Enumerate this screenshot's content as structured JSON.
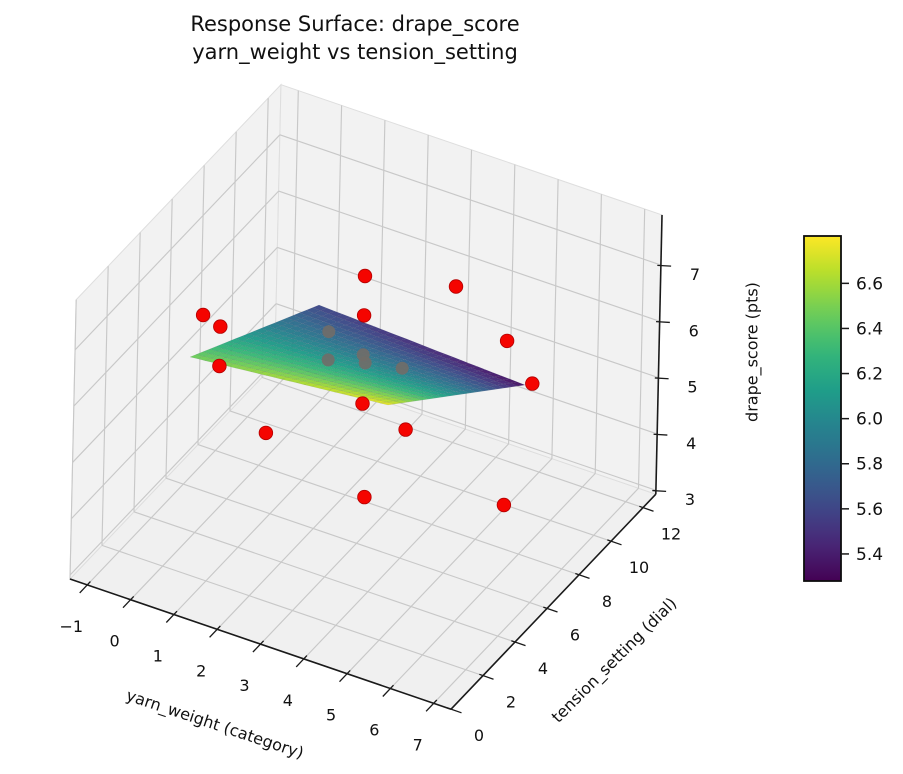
{
  "chart_data": {
    "type": "surface3d_with_scatter",
    "title_line1": "Response Surface: drape_score",
    "title_line2": "yarn_weight vs tension_setting",
    "axes": {
      "x": {
        "label": "yarn_weight (category)",
        "ticks": [
          -1,
          0,
          1,
          2,
          3,
          4,
          5,
          6,
          7
        ],
        "tick_labels": [
          "−1",
          "0",
          "1",
          "2",
          "3",
          "4",
          "5",
          "6",
          "7"
        ],
        "range": [
          -1.4,
          7.4
        ]
      },
      "y": {
        "label": "tension_setting (dial)",
        "ticks": [
          0,
          2,
          4,
          6,
          8,
          10,
          12
        ],
        "tick_labels": [
          "0",
          "2",
          "4",
          "6",
          "8",
          "10",
          "12"
        ],
        "range": [
          0,
          12.8
        ]
      },
      "z": {
        "label": "drape_score (pts)",
        "ticks": [
          3,
          4,
          5,
          6,
          7
        ],
        "tick_labels": [
          "3",
          "4",
          "5",
          "6",
          "7"
        ],
        "range": [
          2.93,
          7.89
        ]
      }
    },
    "surface": {
      "colormap": "viridis",
      "x_range": [
        0,
        6
      ],
      "y_range": [
        2,
        12
      ],
      "corner_z": {
        "x0_y2": 6.48,
        "x6_y2": 6.78,
        "x6_y12": 5.33,
        "x0_y12": 5.6
      },
      "vmin": 5.28,
      "vmax": 6.81
    },
    "scatter": {
      "marker_color": "#f50400",
      "marker_edge_color": "#b30000",
      "occluded_marker_color": "#716d68",
      "points": [
        {
          "yarn_weight": 0.8,
          "tension": 2,
          "drape_score": 7.6
        },
        {
          "yarn_weight": 1.2,
          "tension": 2,
          "drape_score": 7.5
        },
        {
          "yarn_weight": 1.2,
          "tension": 2,
          "drape_score": 6.8
        },
        {
          "yarn_weight": 2.3,
          "tension": 2,
          "drape_score": 5.9
        },
        {
          "yarn_weight": 4.5,
          "tension": 2,
          "drape_score": 7.0
        },
        {
          "yarn_weight": 5.5,
          "tension": 2,
          "drape_score": 6.8
        },
        {
          "yarn_weight": 2.7,
          "tension": 7,
          "drape_score": 7.3
        },
        {
          "yarn_weight": 2.7,
          "tension": 7,
          "drape_score": 6.6
        },
        {
          "yarn_weight": 2.8,
          "tension": 7,
          "drape_score": 3.4
        },
        {
          "yarn_weight": 6.0,
          "tension": 7,
          "drape_score": 4.1
        },
        {
          "yarn_weight": 3.0,
          "tension": 12,
          "drape_score": 5.7
        },
        {
          "yarn_weight": 4.2,
          "tension": 12,
          "drape_score": 5.05
        },
        {
          "yarn_weight": 4.8,
          "tension": 12,
          "drape_score": 4.45
        }
      ],
      "occluded_points": [
        {
          "yarn_weight": 1.9,
          "tension": 7,
          "drape_score": 6.1
        },
        {
          "yarn_weight": 2.7,
          "tension": 7,
          "drape_score": 5.9
        },
        {
          "yarn_weight": 2.75,
          "tension": 7,
          "drape_score": 5.77
        },
        {
          "yarn_weight": 1.9,
          "tension": 7,
          "drape_score": 5.6
        },
        {
          "yarn_weight": 3.6,
          "tension": 7,
          "drape_score": 5.9
        }
      ]
    },
    "colorbar": {
      "vmin": 5.28,
      "vmax": 6.81,
      "ticks": [
        6.6,
        6.4,
        6.2,
        6.0,
        5.8,
        5.6,
        5.4
      ],
      "tick_labels": [
        "6.6",
        "6.4",
        "6.2",
        "6.0",
        "5.8",
        "5.6",
        "5.4"
      ]
    }
  }
}
